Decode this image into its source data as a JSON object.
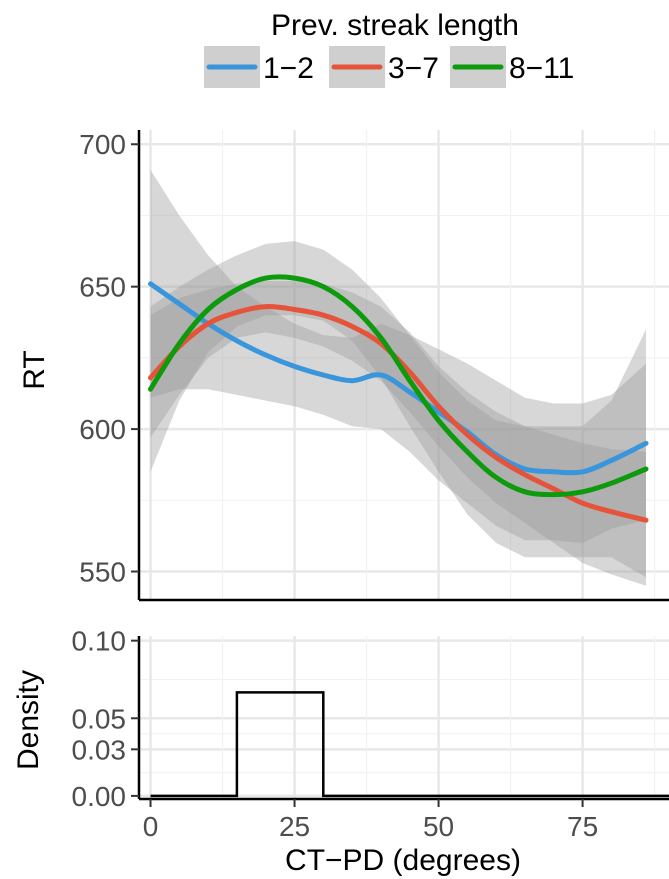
{
  "chart_data": [
    {
      "type": "line",
      "panel": "top",
      "ylabel": "RT",
      "xlim": [
        -2,
        90
      ],
      "ylim": [
        540,
        705
      ],
      "yticks": [
        550,
        600,
        650,
        700
      ],
      "grid": true,
      "legend": {
        "title": "Prev. streak length",
        "placement": "top",
        "entries": [
          "1−2",
          "3−7",
          "8−11"
        ]
      },
      "series": [
        {
          "name": "1−2",
          "color": "#3a96dc",
          "x": [
            0,
            5,
            10,
            15,
            20,
            25,
            30,
            35,
            40,
            45,
            50,
            55,
            60,
            65,
            70,
            75,
            80,
            86
          ],
          "y": [
            651,
            644,
            637,
            631,
            626,
            622,
            619,
            617,
            619,
            613,
            606,
            599,
            591,
            586,
            585,
            585,
            589,
            595
          ],
          "ci_lower": [
            611,
            614,
            614,
            612,
            610,
            608,
            605,
            601,
            600,
            592,
            582,
            574,
            566,
            561,
            561,
            560,
            565,
            568
          ],
          "ci_upper": [
            691,
            675,
            661,
            650,
            643,
            637,
            633,
            632,
            637,
            633,
            628,
            623,
            617,
            611,
            609,
            609,
            612,
            623
          ]
        },
        {
          "name": "3−7",
          "color": "#e5533b",
          "x": [
            0,
            5,
            10,
            15,
            20,
            25,
            30,
            35,
            40,
            45,
            50,
            55,
            60,
            65,
            70,
            75,
            80,
            86
          ],
          "y": [
            618,
            629,
            637,
            641,
            643,
            642,
            640,
            636,
            630,
            620,
            608,
            598,
            590,
            584,
            579,
            574,
            571,
            568
          ],
          "ci_lower": [
            597,
            612,
            625,
            632,
            634,
            632,
            629,
            624,
            617,
            606,
            594,
            583,
            574,
            567,
            560,
            553,
            549,
            545
          ],
          "ci_upper": [
            640,
            646,
            649,
            651,
            652,
            652,
            651,
            648,
            643,
            634,
            622,
            613,
            606,
            601,
            598,
            595,
            593,
            592
          ]
        },
        {
          "name": "8−11",
          "color": "#0d9a0d",
          "x": [
            0,
            5,
            10,
            15,
            20,
            25,
            30,
            35,
            40,
            45,
            50,
            55,
            60,
            65,
            70,
            75,
            80,
            86
          ],
          "y": [
            614,
            630,
            642,
            649,
            653,
            653,
            650,
            643,
            632,
            617,
            603,
            592,
            583,
            578,
            577,
            578,
            581,
            586
          ],
          "ci_lower": [
            585,
            610,
            627,
            636,
            640,
            640,
            638,
            631,
            618,
            601,
            585,
            570,
            560,
            555,
            555,
            555,
            555,
            548
          ],
          "ci_upper": [
            643,
            650,
            656,
            661,
            665,
            666,
            663,
            656,
            646,
            633,
            620,
            610,
            603,
            601,
            601,
            601,
            610,
            635
          ]
        }
      ]
    },
    {
      "type": "line",
      "panel": "bottom",
      "xlabel": "CT−PD (degrees)",
      "ylabel": "Density",
      "xlim": [
        -2,
        90
      ],
      "ylim": [
        -0.002,
        0.103
      ],
      "xticks": [
        0,
        25,
        50,
        75
      ],
      "yticks": [
        0.0,
        0.03,
        0.05,
        0.1
      ],
      "ytick_labels": [
        "0.00",
        "0.03",
        "0.05",
        "0.10"
      ],
      "grid": true,
      "series": [
        {
          "x": [
            0,
            15,
            15,
            30,
            30,
            90
          ],
          "y": [
            0,
            0,
            0.0667,
            0.0667,
            0,
            0
          ]
        }
      ]
    }
  ]
}
